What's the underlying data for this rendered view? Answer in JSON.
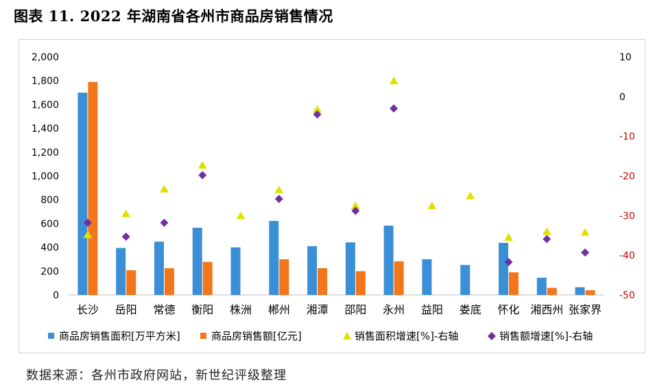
{
  "figure_title": "图表 11. 2022 年湖南省各州市商品房销售情况",
  "source_note": "数据来源：各州市政府网站，新世纪评级整理",
  "colors": {
    "area_bar": "#3b8fd6",
    "amount_bar": "#f4761b",
    "area_growth": "#e0e000",
    "amount_growth": "#7030a0",
    "right_axis_text": "#c00000"
  },
  "chart_data": {
    "type": "bar",
    "title": "",
    "categories": [
      "长沙",
      "岳阳",
      "常德",
      "衡阳",
      "株洲",
      "郴州",
      "湘潭",
      "邵阳",
      "永州",
      "益阳",
      "娄底",
      "怀化",
      "湘西州",
      "张家界"
    ],
    "left_axis": {
      "min": 0,
      "max": 2000,
      "step": 200,
      "tick_labels": [
        "0",
        "200",
        "400",
        "600",
        "800",
        "1,000",
        "1,200",
        "1,400",
        "1,600",
        "1,800",
        "2,000"
      ]
    },
    "right_axis": {
      "min": -50,
      "max": 10,
      "step": 10,
      "tick_labels": [
        "-50",
        "-40",
        "-30",
        "-20",
        "-10",
        "0",
        "10"
      ]
    },
    "series": [
      {
        "name": "商品房销售面积[万平方米]",
        "type": "bar",
        "axis": "left",
        "values": [
          1700,
          395,
          448,
          565,
          400,
          622,
          410,
          442,
          583,
          300,
          252,
          438,
          145,
          65
        ]
      },
      {
        "name": "商品房销售额[亿元]",
        "type": "bar",
        "axis": "left",
        "values": [
          1790,
          208,
          225,
          278,
          null,
          300,
          225,
          200,
          283,
          null,
          null,
          190,
          60,
          40
        ]
      },
      {
        "name": "销售面积增速[%]-右轴",
        "type": "scatter",
        "marker": "triangle",
        "axis": "right",
        "values": [
          -34.8,
          -29.5,
          -23.3,
          -17.3,
          -30.0,
          -23.5,
          -3.2,
          -27.5,
          4.0,
          -27.5,
          -25.0,
          -35.5,
          -34.0,
          -34.2
        ]
      },
      {
        "name": "销售额增速[%]-右轴",
        "type": "scatter",
        "marker": "diamond",
        "axis": "right",
        "values": [
          -31.8,
          -35.3,
          -31.8,
          -19.8,
          null,
          -25.8,
          -4.5,
          -28.8,
          -3.0,
          null,
          null,
          -41.7,
          -35.9,
          -39.3
        ]
      }
    ],
    "legend_position": "bottom"
  }
}
